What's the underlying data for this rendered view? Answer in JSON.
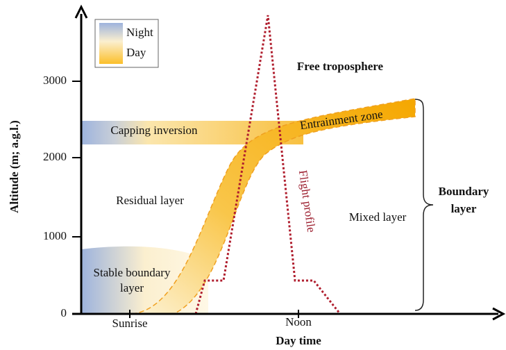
{
  "legend": {
    "items": [
      "Night",
      "Day"
    ]
  },
  "axes": {
    "y_label": "Altitude (m; a.g.l.)",
    "x_label": "Day time",
    "y_ticks": [
      "0",
      "1000",
      "2000",
      "3000"
    ],
    "x_ticks": [
      "Sunrise",
      "Noon"
    ]
  },
  "labels": {
    "free_troposphere": "Free troposphere",
    "capping_inversion": "Capping inversion",
    "entrainment_zone": "Entrainment zone",
    "residual_layer": "Residual layer",
    "stable_boundary_layer": [
      "Stable boundary",
      "layer"
    ],
    "mixed_layer": "Mixed layer",
    "flight_profile": "Flight profile",
    "boundary_layer": [
      "Boundary",
      "layer"
    ]
  }
}
